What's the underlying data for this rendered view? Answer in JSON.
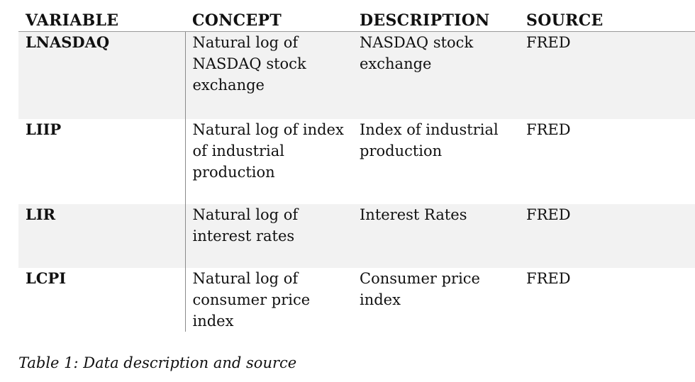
{
  "table": {
    "headers": [
      "VARIABLE",
      "CONCEPT",
      "DESCRIPTION",
      "SOURCE"
    ],
    "rows": [
      {
        "variable": "LNASDAQ",
        "concept": "Natural log of NASDAQ stock exchange",
        "description": "NASDAQ stock exchange",
        "source": "FRED"
      },
      {
        "variable": "LIIP",
        "concept": "Natural log of index of industrial production",
        "description": "Index of industrial production",
        "source": "FRED"
      },
      {
        "variable": "LIR",
        "concept": "Natural log of interest rates",
        "description": "Interest Rates",
        "source": "FRED"
      },
      {
        "variable": "LCPI",
        "concept": "Natural log of consumer price index",
        "description": "Consumer price index",
        "source": "FRED"
      }
    ]
  },
  "caption": "Table 1: Data description and source"
}
